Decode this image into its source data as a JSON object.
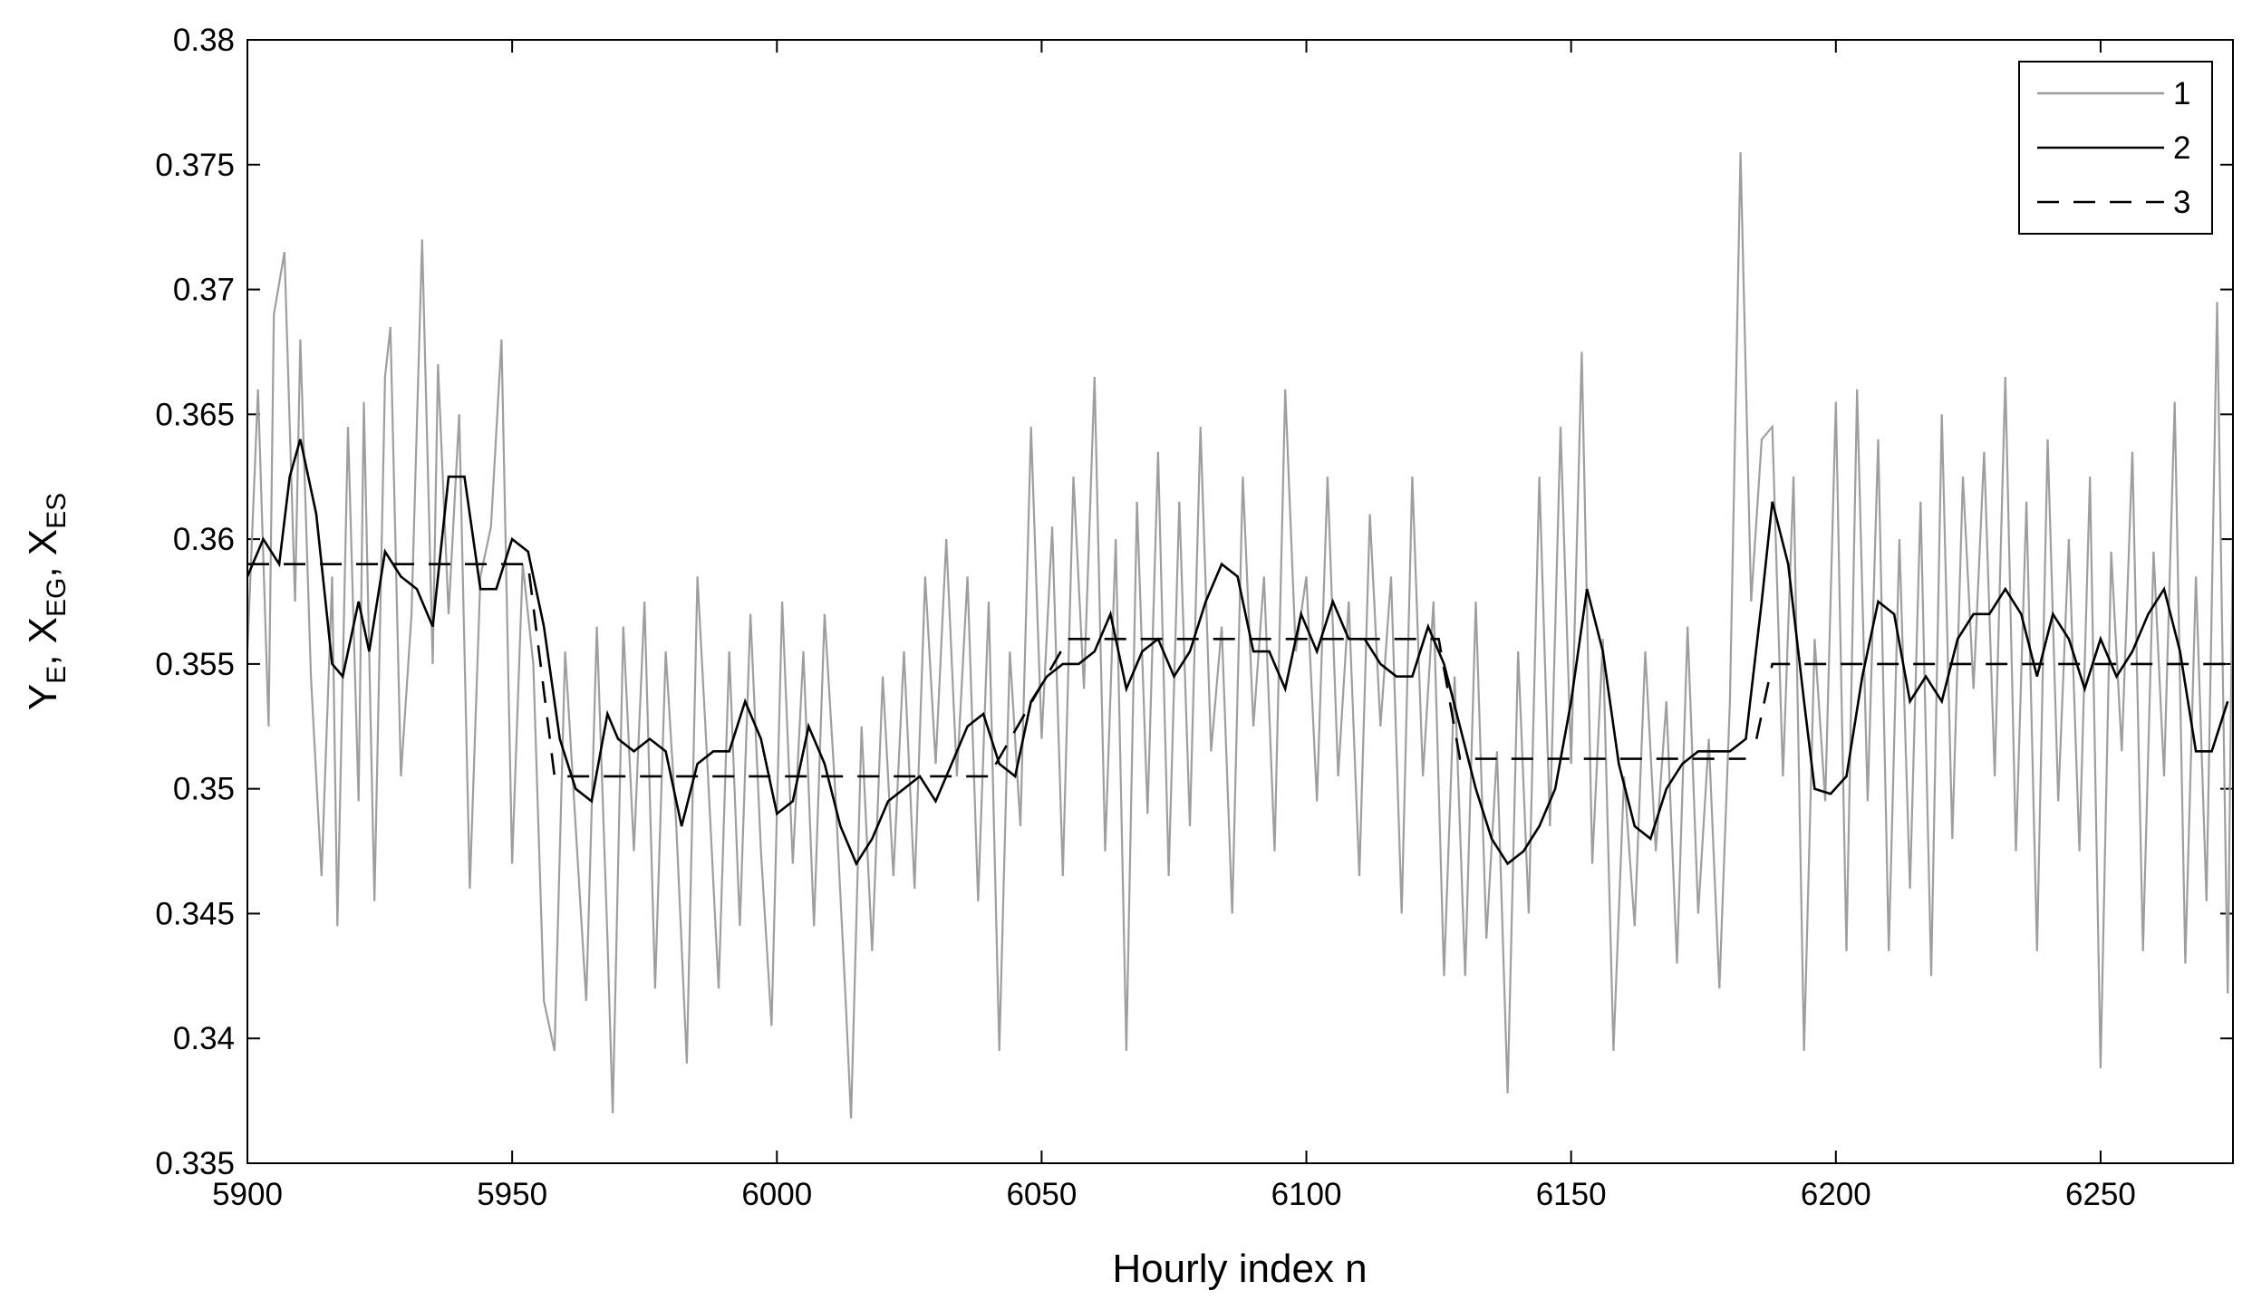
{
  "chart_data": {
    "type": "line",
    "xlabel": "Hourly index n",
    "ylabel_parts": [
      "Y",
      "E",
      ", X",
      "EG",
      ", X",
      "ES"
    ],
    "xlim": [
      5900,
      6275
    ],
    "xticks": [
      5900,
      5950,
      6000,
      6050,
      6100,
      6150,
      6200,
      6250
    ],
    "ylim": [
      0.335,
      0.38
    ],
    "yticks": [
      0.335,
      0.34,
      0.345,
      0.35,
      0.355,
      0.36,
      0.365,
      0.37,
      0.375,
      0.38
    ],
    "legend": "northeast",
    "series": [
      {
        "name": "1",
        "color": "#9e9e9e",
        "dash": "solid",
        "x": [
          5900,
          5902,
          5904,
          5905,
          5907,
          5909,
          5910,
          5912,
          5914,
          5916,
          5917,
          5919,
          5921,
          5922,
          5924,
          5926,
          5927,
          5929,
          5931,
          5933,
          5935,
          5936,
          5938,
          5940,
          5942,
          5944,
          5946,
          5948,
          5950,
          5952,
          5954,
          5956,
          5958,
          5960,
          5962,
          5964,
          5966,
          5968,
          5969,
          5971,
          5973,
          5975,
          5977,
          5979,
          5981,
          5983,
          5985,
          5987,
          5989,
          5991,
          5993,
          5995,
          5997,
          5999,
          6001,
          6003,
          6005,
          6007,
          6009,
          6011,
          6013,
          6014,
          6016,
          6018,
          6020,
          6022,
          6024,
          6026,
          6028,
          6030,
          6032,
          6034,
          6036,
          6038,
          6040,
          6042,
          6044,
          6046,
          6048,
          6050,
          6052,
          6054,
          6056,
          6058,
          6060,
          6062,
          6064,
          6066,
          6068,
          6070,
          6072,
          6074,
          6076,
          6078,
          6080,
          6082,
          6084,
          6086,
          6088,
          6090,
          6092,
          6094,
          6096,
          6098,
          6100,
          6102,
          6104,
          6106,
          6108,
          6110,
          6112,
          6114,
          6116,
          6118,
          6120,
          6122,
          6124,
          6126,
          6128,
          6130,
          6132,
          6134,
          6136,
          6138,
          6140,
          6142,
          6144,
          6146,
          6148,
          6150,
          6152,
          6154,
          6156,
          6158,
          6160,
          6162,
          6164,
          6166,
          6168,
          6170,
          6172,
          6174,
          6176,
          6178,
          6180,
          6182,
          6184,
          6186,
          6188,
          6190,
          6192,
          6194,
          6196,
          6198,
          6200,
          6202,
          6204,
          6206,
          6208,
          6210,
          6212,
          6214,
          6216,
          6218,
          6220,
          6222,
          6224,
          6226,
          6228,
          6230,
          6232,
          6234,
          6236,
          6238,
          6240,
          6242,
          6244,
          6246,
          6248,
          6250,
          6252,
          6254,
          6256,
          6258,
          6260,
          6262,
          6264,
          6266,
          6268,
          6270,
          6272,
          6274,
          6275
        ],
        "values": [
          0.3555,
          0.366,
          0.3525,
          0.369,
          0.3715,
          0.3575,
          0.368,
          0.3545,
          0.3465,
          0.3585,
          0.3445,
          0.3645,
          0.3495,
          0.3655,
          0.3455,
          0.3665,
          0.3685,
          0.3505,
          0.357,
          0.372,
          0.355,
          0.367,
          0.357,
          0.365,
          0.346,
          0.3585,
          0.3605,
          0.368,
          0.347,
          0.359,
          0.355,
          0.3415,
          0.3395,
          0.3555,
          0.3485,
          0.3415,
          0.3565,
          0.344,
          0.337,
          0.3565,
          0.3475,
          0.3575,
          0.342,
          0.3555,
          0.3485,
          0.339,
          0.3585,
          0.3505,
          0.342,
          0.3555,
          0.3445,
          0.357,
          0.3475,
          0.3405,
          0.3575,
          0.347,
          0.3555,
          0.3445,
          0.357,
          0.35,
          0.3415,
          0.3368,
          0.3525,
          0.3435,
          0.3545,
          0.3465,
          0.3555,
          0.346,
          0.3585,
          0.351,
          0.36,
          0.3505,
          0.3585,
          0.3455,
          0.3575,
          0.3395,
          0.3555,
          0.3485,
          0.3645,
          0.352,
          0.3605,
          0.3465,
          0.3625,
          0.354,
          0.3665,
          0.3475,
          0.36,
          0.3395,
          0.3615,
          0.349,
          0.3635,
          0.3465,
          0.3615,
          0.3485,
          0.3645,
          0.3515,
          0.3565,
          0.345,
          0.3625,
          0.3525,
          0.3585,
          0.3475,
          0.366,
          0.3555,
          0.3585,
          0.3495,
          0.3625,
          0.3505,
          0.3575,
          0.3465,
          0.361,
          0.3525,
          0.3585,
          0.345,
          0.3625,
          0.3505,
          0.3575,
          0.3425,
          0.3545,
          0.3425,
          0.3575,
          0.344,
          0.3515,
          0.3378,
          0.3555,
          0.345,
          0.3625,
          0.3485,
          0.3645,
          0.351,
          0.3675,
          0.347,
          0.356,
          0.3395,
          0.3505,
          0.3445,
          0.3555,
          0.3475,
          0.3535,
          0.343,
          0.3565,
          0.345,
          0.352,
          0.342,
          0.3535,
          0.3755,
          0.3575,
          0.364,
          0.3645,
          0.3505,
          0.3625,
          0.3395,
          0.356,
          0.3495,
          0.3655,
          0.3435,
          0.366,
          0.3495,
          0.364,
          0.3435,
          0.36,
          0.346,
          0.3615,
          0.3425,
          0.365,
          0.348,
          0.3625,
          0.354,
          0.3635,
          0.3505,
          0.3665,
          0.3475,
          0.3615,
          0.3435,
          0.364,
          0.3495,
          0.36,
          0.3475,
          0.3625,
          0.3388,
          0.3595,
          0.3515,
          0.3635,
          0.3435,
          0.3595,
          0.3505,
          0.3655,
          0.343,
          0.3585,
          0.3455,
          0.3695,
          0.3418,
          0.3605
        ]
      },
      {
        "name": "2",
        "color": "#000000",
        "dash": "solid",
        "x": [
          5900,
          5903,
          5906,
          5908,
          5910,
          5913,
          5916,
          5918,
          5921,
          5923,
          5926,
          5929,
          5932,
          5935,
          5938,
          5941,
          5944,
          5947,
          5950,
          5953,
          5956,
          5959,
          5962,
          5965,
          5968,
          5970,
          5973,
          5976,
          5979,
          5982,
          5985,
          5988,
          5991,
          5994,
          5997,
          6000,
          6003,
          6006,
          6009,
          6012,
          6015,
          6018,
          6021,
          6024,
          6027,
          6030,
          6033,
          6036,
          6039,
          6042,
          6045,
          6048,
          6051,
          6054,
          6057,
          6060,
          6063,
          6066,
          6069,
          6072,
          6075,
          6078,
          6081,
          6084,
          6087,
          6090,
          6093,
          6096,
          6099,
          6102,
          6105,
          6108,
          6111,
          6114,
          6117,
          6120,
          6123,
          6126,
          6129,
          6132,
          6135,
          6138,
          6141,
          6144,
          6147,
          6150,
          6153,
          6156,
          6159,
          6162,
          6165,
          6168,
          6171,
          6174,
          6177,
          6180,
          6183,
          6186,
          6188,
          6191,
          6194,
          6196,
          6199,
          6202,
          6205,
          6208,
          6211,
          6214,
          6217,
          6220,
          6223,
          6226,
          6229,
          6232,
          6235,
          6238,
          6241,
          6244,
          6247,
          6250,
          6253,
          6256,
          6259,
          6262,
          6265,
          6268,
          6271,
          6274
        ],
        "values": [
          0.3585,
          0.36,
          0.359,
          0.3625,
          0.364,
          0.361,
          0.355,
          0.3545,
          0.3575,
          0.3555,
          0.3595,
          0.3585,
          0.358,
          0.3565,
          0.3625,
          0.3625,
          0.358,
          0.358,
          0.36,
          0.3595,
          0.3565,
          0.352,
          0.35,
          0.3495,
          0.353,
          0.352,
          0.3515,
          0.352,
          0.3515,
          0.3485,
          0.351,
          0.3515,
          0.3515,
          0.3535,
          0.352,
          0.349,
          0.3495,
          0.3525,
          0.351,
          0.3485,
          0.347,
          0.348,
          0.3495,
          0.35,
          0.3505,
          0.3495,
          0.351,
          0.3525,
          0.353,
          0.351,
          0.3505,
          0.3535,
          0.3545,
          0.355,
          0.355,
          0.3555,
          0.357,
          0.354,
          0.3555,
          0.356,
          0.3545,
          0.3555,
          0.3575,
          0.359,
          0.3585,
          0.3555,
          0.3555,
          0.354,
          0.357,
          0.3555,
          0.3575,
          0.356,
          0.356,
          0.355,
          0.3545,
          0.3545,
          0.3565,
          0.355,
          0.3525,
          0.35,
          0.348,
          0.347,
          0.3475,
          0.3485,
          0.35,
          0.3535,
          0.358,
          0.3555,
          0.351,
          0.3485,
          0.348,
          0.35,
          0.351,
          0.3515,
          0.3515,
          0.3515,
          0.352,
          0.3575,
          0.3615,
          0.359,
          0.3535,
          0.35,
          0.3498,
          0.3505,
          0.3545,
          0.3575,
          0.357,
          0.3535,
          0.3545,
          0.3535,
          0.356,
          0.357,
          0.357,
          0.358,
          0.357,
          0.3545,
          0.357,
          0.356,
          0.354,
          0.356,
          0.3545,
          0.3555,
          0.357,
          0.358,
          0.3555,
          0.3515,
          0.3515,
          0.3535
        ]
      },
      {
        "name": "3",
        "color": "#000000",
        "dash": "dashed",
        "x": [
          5900,
          5953,
          5958,
          6040,
          6055,
          6125,
          6129,
          6183,
          6184,
          6185,
          6188,
          6275
        ],
        "values": [
          0.359,
          0.359,
          0.3505,
          0.3505,
          0.356,
          0.356,
          0.3512,
          0.3512,
          null,
          0.352,
          0.355,
          0.355
        ]
      }
    ]
  }
}
